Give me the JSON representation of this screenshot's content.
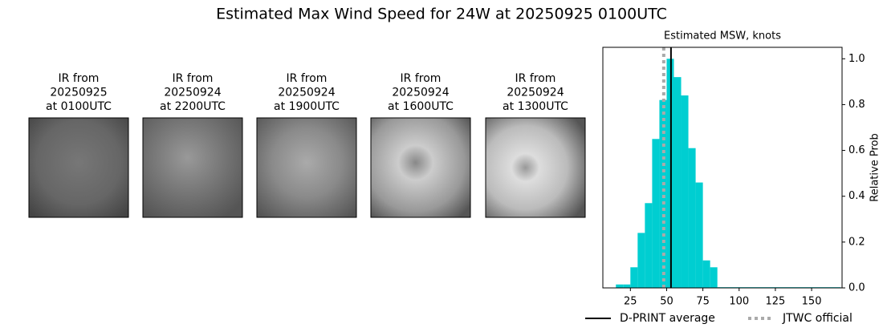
{
  "title": "Estimated Max Wind Speed for 24W at 20250925 0100UTC",
  "images": [
    {
      "lines": [
        "IR from",
        "20250925",
        "at 0100UTC"
      ]
    },
    {
      "lines": [
        "IR from",
        "20250924",
        "at 2200UTC"
      ]
    },
    {
      "lines": [
        "IR from",
        "20250924",
        "at 1900UTC"
      ]
    },
    {
      "lines": [
        "IR from",
        "20250924",
        "at 1600UTC"
      ]
    },
    {
      "lines": [
        "IR from",
        "20250924",
        "at 1300UTC"
      ]
    }
  ],
  "chart_data": {
    "type": "histogram",
    "title": "Estimated MSW, knots",
    "y_label": "Relative Prob",
    "bins": [
      15,
      20,
      25,
      30,
      35,
      40,
      45,
      50,
      55,
      60,
      65,
      70,
      75,
      80,
      85,
      170
    ],
    "values": [
      0.015,
      0.015,
      0.09,
      0.24,
      0.37,
      0.65,
      0.82,
      1.0,
      0.92,
      0.84,
      0.61,
      0.46,
      0.12,
      0.09,
      0.003
    ],
    "color": "#00ced1",
    "xlim": [
      6,
      171
    ],
    "ylim": [
      0,
      1.05
    ],
    "xticks": [
      25,
      50,
      75,
      100,
      125,
      150
    ],
    "yticks": [
      {
        "value": 0,
        "label": "0.0"
      },
      {
        "value": 0.2,
        "label": "0.2"
      },
      {
        "value": 0.4,
        "label": "0.4"
      },
      {
        "value": 0.6,
        "label": "0.6"
      },
      {
        "value": 0.8,
        "label": "0.8"
      },
      {
        "value": 1.0,
        "label": "1.0"
      }
    ],
    "lines": [
      {
        "name": "D-PRINT average",
        "x": 53,
        "color": "#000000",
        "style": "solid"
      },
      {
        "name": "JTWC official",
        "x": 48,
        "color": "#aaaaaa",
        "style": "dotted"
      }
    ]
  }
}
